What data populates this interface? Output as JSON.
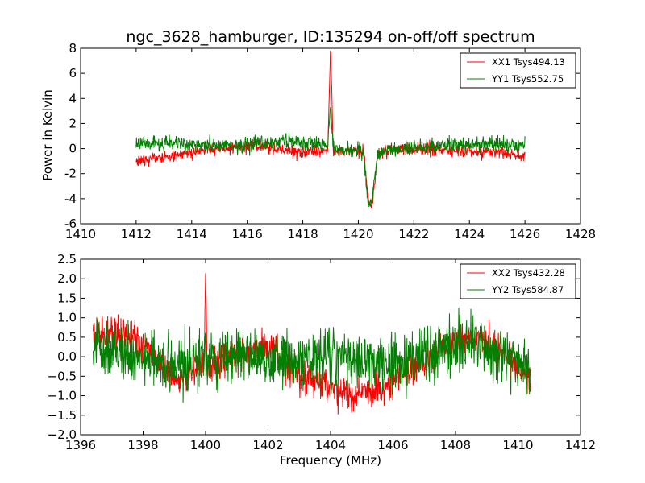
{
  "figure": {
    "title": "ngc_3628_hamburger, ID:135294 on-off/off spectrum",
    "ylabel": "Power in Kelvin",
    "xlabel": "Frequency (MHz)"
  },
  "chart_data": [
    {
      "type": "line",
      "title": "ngc_3628_hamburger, ID:135294 on-off/off spectrum",
      "xlabel": "",
      "ylabel": "Power in Kelvin",
      "xlim": [
        1410,
        1428
      ],
      "ylim": [
        -6,
        8
      ],
      "xticks": [
        1410,
        1412,
        1414,
        1416,
        1418,
        1420,
        1422,
        1424,
        1426,
        1428
      ],
      "yticks": [
        -6,
        -4,
        -2,
        0,
        2,
        4,
        6,
        8
      ],
      "grid": false,
      "legend": "top-right",
      "series": [
        {
          "name": "XX1 Tsys494.13",
          "color": "#ff0000",
          "x": [
            1412.0,
            1412.5,
            1413.0,
            1413.5,
            1414.0,
            1414.5,
            1415.0,
            1415.5,
            1416.0,
            1416.5,
            1417.0,
            1417.5,
            1418.0,
            1418.5,
            1418.9,
            1419.0,
            1419.1,
            1419.5,
            1420.0,
            1420.2,
            1420.35,
            1420.5,
            1420.7,
            1421.0,
            1421.5,
            1422.0,
            1422.5,
            1423.0,
            1423.5,
            1424.0,
            1424.5,
            1425.0,
            1425.5,
            1426.0
          ],
          "y": [
            -1.0,
            -0.8,
            -0.7,
            -0.5,
            -0.3,
            -0.1,
            0.0,
            0.1,
            0.2,
            0.2,
            0.0,
            -0.2,
            -0.3,
            -0.3,
            -0.2,
            8.0,
            -0.2,
            -0.2,
            -0.2,
            -0.3,
            -4.0,
            -4.5,
            -0.3,
            -0.2,
            -0.1,
            0.0,
            0.0,
            -0.1,
            -0.2,
            -0.2,
            -0.3,
            -0.3,
            -0.4,
            -0.5
          ],
          "noise": 0.25
        },
        {
          "name": "YY1 Tsys552.75",
          "color": "#008000",
          "x": [
            1412.0,
            1412.5,
            1413.0,
            1413.5,
            1414.0,
            1414.5,
            1415.0,
            1415.5,
            1416.0,
            1416.5,
            1417.0,
            1417.5,
            1418.0,
            1418.5,
            1418.9,
            1419.0,
            1419.1,
            1419.5,
            1420.0,
            1420.2,
            1420.35,
            1420.5,
            1420.7,
            1421.0,
            1421.5,
            1422.0,
            1422.5,
            1423.0,
            1423.5,
            1424.0,
            1424.5,
            1425.0,
            1425.5,
            1426.0
          ],
          "y": [
            0.3,
            0.4,
            0.4,
            0.4,
            0.3,
            0.3,
            0.2,
            0.2,
            0.3,
            0.4,
            0.5,
            0.6,
            0.5,
            0.4,
            0.2,
            3.2,
            0.0,
            -0.1,
            -0.2,
            -0.3,
            -4.5,
            -4.0,
            -0.4,
            -0.1,
            0.0,
            0.1,
            0.1,
            0.2,
            0.3,
            0.3,
            0.4,
            0.4,
            0.3,
            0.2
          ],
          "noise": 0.3
        }
      ]
    },
    {
      "type": "line",
      "title": "",
      "xlabel": "Frequency (MHz)",
      "ylabel": "",
      "xlim": [
        1396,
        1412
      ],
      "ylim": [
        -2.0,
        2.5
      ],
      "xticks": [
        1396,
        1398,
        1400,
        1402,
        1404,
        1406,
        1408,
        1410,
        1412
      ],
      "yticks": [
        -2.0,
        -1.5,
        -1.0,
        -0.5,
        0.0,
        0.5,
        1.0,
        1.5,
        2.0,
        2.5
      ],
      "ytick_labels": [
        "−2.0",
        "−1.5",
        "−1.0",
        "−0.5",
        "0.0",
        "0.5",
        "1.0",
        "1.5",
        "2.0",
        "2.5"
      ],
      "grid": false,
      "legend": "top-right",
      "series": [
        {
          "name": "XX2 Tsys432.28",
          "color": "#ff0000",
          "x": [
            1396.4,
            1396.8,
            1397.2,
            1397.6,
            1398.0,
            1398.4,
            1398.8,
            1399.2,
            1399.6,
            1399.95,
            1400.0,
            1400.05,
            1400.4,
            1400.8,
            1401.2,
            1401.6,
            1402.0,
            1402.4,
            1402.8,
            1403.2,
            1403.6,
            1404.0,
            1404.4,
            1404.8,
            1405.2,
            1405.6,
            1406.0,
            1406.4,
            1406.8,
            1407.2,
            1407.6,
            1408.0,
            1408.4,
            1408.8,
            1409.2,
            1409.6,
            1410.0,
            1410.4
          ],
          "y": [
            0.5,
            0.6,
            0.6,
            0.5,
            0.3,
            -0.1,
            -0.4,
            -0.5,
            -0.4,
            -0.3,
            2.15,
            -0.3,
            -0.2,
            0.0,
            0.1,
            0.2,
            0.2,
            0.0,
            -0.3,
            -0.5,
            -0.6,
            -0.8,
            -0.9,
            -1.0,
            -0.9,
            -0.8,
            -0.6,
            -0.4,
            -0.2,
            0.0,
            0.2,
            0.4,
            0.5,
            0.5,
            0.3,
            0.0,
            -0.3,
            -0.6
          ],
          "noise": 0.22
        },
        {
          "name": "YY2 Tsys584.87",
          "color": "#008000",
          "x": [
            1396.4,
            1396.8,
            1397.2,
            1397.6,
            1398.0,
            1398.4,
            1398.8,
            1399.2,
            1399.6,
            1400.0,
            1400.4,
            1400.8,
            1401.2,
            1401.6,
            1402.0,
            1402.4,
            1402.8,
            1403.2,
            1403.6,
            1404.0,
            1404.4,
            1404.8,
            1405.2,
            1405.6,
            1406.0,
            1406.4,
            1406.8,
            1407.2,
            1407.6,
            1408.0,
            1408.4,
            1408.8,
            1409.2,
            1409.6,
            1410.0,
            1410.4
          ],
          "y": [
            0.2,
            0.2,
            0.1,
            0.0,
            -0.1,
            -0.2,
            -0.2,
            -0.2,
            -0.1,
            -0.1,
            0.0,
            0.0,
            0.0,
            0.0,
            0.0,
            0.0,
            0.0,
            0.0,
            0.0,
            0.0,
            0.0,
            -0.1,
            -0.2,
            -0.2,
            -0.2,
            -0.1,
            0.0,
            0.1,
            0.2,
            0.3,
            0.3,
            0.2,
            0.1,
            0.0,
            -0.1,
            -0.3
          ],
          "noise": 0.35
        }
      ]
    }
  ]
}
